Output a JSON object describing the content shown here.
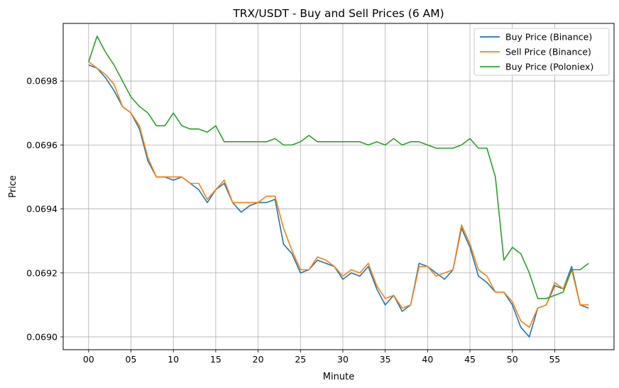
{
  "chart_data": {
    "type": "line",
    "title": "TRX/USDT - Buy and Sell Prices (6 AM)",
    "xlabel": "Minute",
    "ylabel": "Price",
    "xlim": [
      -3,
      62
    ],
    "ylim": [
      0.06896,
      0.06998
    ],
    "x_ticks": [
      "00",
      "05",
      "10",
      "15",
      "20",
      "25",
      "30",
      "35",
      "40",
      "45",
      "50",
      "55"
    ],
    "y_ticks": [
      "0.0690",
      "0.0692",
      "0.0694",
      "0.0696",
      "0.0698"
    ],
    "grid": true,
    "legend_position": "top-right",
    "x": [
      0,
      1,
      2,
      3,
      4,
      5,
      6,
      7,
      8,
      9,
      10,
      11,
      12,
      13,
      14,
      15,
      16,
      17,
      18,
      19,
      20,
      21,
      22,
      23,
      24,
      25,
      26,
      27,
      28,
      29,
      30,
      31,
      32,
      33,
      34,
      35,
      36,
      37,
      38,
      39,
      40,
      41,
      42,
      43,
      44,
      45,
      46,
      47,
      48,
      49,
      50,
      51,
      52,
      53,
      54,
      55,
      56,
      57,
      58,
      59
    ],
    "series": [
      {
        "name": "Buy Price (Binance)",
        "color": "#1f77b4",
        "values": [
          0.06985,
          0.06984,
          0.06981,
          0.06977,
          0.06972,
          0.0697,
          0.06965,
          0.06955,
          0.0695,
          0.0695,
          0.06949,
          0.0695,
          0.06948,
          0.06946,
          0.06942,
          0.06946,
          0.06948,
          0.06942,
          0.06939,
          0.06941,
          0.06942,
          0.06942,
          0.06943,
          0.06929,
          0.06926,
          0.0692,
          0.06921,
          0.06924,
          0.06923,
          0.06922,
          0.06918,
          0.0692,
          0.06919,
          0.06922,
          0.06915,
          0.0691,
          0.06913,
          0.06908,
          0.0691,
          0.06923,
          0.06922,
          0.0692,
          0.06918,
          0.06921,
          0.06934,
          0.06928,
          0.06919,
          0.06917,
          0.06914,
          0.06914,
          0.0691,
          0.06903,
          0.069,
          0.06909,
          0.0691,
          0.06916,
          0.06915,
          0.06922,
          0.0691,
          0.06909
        ]
      },
      {
        "name": "Sell Price (Binance)",
        "color": "#ff7f0e",
        "values": [
          0.06986,
          0.06984,
          0.06982,
          0.06979,
          0.06972,
          0.0697,
          0.06966,
          0.06956,
          0.0695,
          0.0695,
          0.0695,
          0.0695,
          0.06948,
          0.06948,
          0.06943,
          0.06946,
          0.06949,
          0.06942,
          0.06942,
          0.06942,
          0.06942,
          0.06944,
          0.06944,
          0.06934,
          0.06927,
          0.06921,
          0.06921,
          0.06925,
          0.06924,
          0.06922,
          0.06919,
          0.06921,
          0.0692,
          0.06923,
          0.06916,
          0.06912,
          0.06913,
          0.06909,
          0.0691,
          0.06922,
          0.06922,
          0.06919,
          0.0692,
          0.06921,
          0.06935,
          0.06929,
          0.06921,
          0.06919,
          0.06914,
          0.06914,
          0.06911,
          0.06905,
          0.06903,
          0.06909,
          0.0691,
          0.06917,
          0.06915,
          0.06921,
          0.0691,
          0.0691
        ]
      },
      {
        "name": "Buy Price (Poloniex)",
        "color": "#2ca02c",
        "values": [
          0.06986,
          0.06994,
          0.06989,
          0.06985,
          0.0698,
          0.06975,
          0.06972,
          0.0697,
          0.06966,
          0.06966,
          0.0697,
          0.06966,
          0.06965,
          0.06965,
          0.06964,
          0.06966,
          0.06961,
          0.06961,
          0.06961,
          0.06961,
          0.06961,
          0.06961,
          0.06962,
          0.0696,
          0.0696,
          0.06961,
          0.06963,
          0.06961,
          0.06961,
          0.06961,
          0.06961,
          0.06961,
          0.06961,
          0.0696,
          0.06961,
          0.0696,
          0.06962,
          0.0696,
          0.06961,
          0.06961,
          0.0696,
          0.06959,
          0.06959,
          0.06959,
          0.0696,
          0.06962,
          0.06959,
          0.06959,
          0.0695,
          0.06924,
          0.06928,
          0.06926,
          0.0692,
          0.06912,
          0.06912,
          0.06913,
          0.06914,
          0.06921,
          0.06921,
          0.06923
        ]
      }
    ]
  }
}
